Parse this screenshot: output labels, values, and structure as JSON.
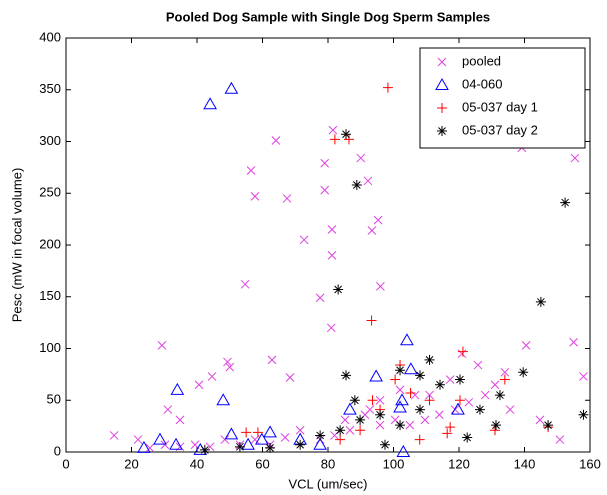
{
  "chart_data": {
    "type": "scatter",
    "title": "Pooled Dog Sample with Single Dog Sperm Samples",
    "x_label": "VCL (um/sec)",
    "y_label": "Pesc (mW in focal volume)",
    "xlim": [
      0,
      160
    ],
    "xticks": [
      0,
      20,
      40,
      60,
      80,
      100,
      120,
      140,
      160
    ],
    "ylim": [
      0,
      400
    ],
    "yticks": [
      0,
      50,
      100,
      150,
      200,
      250,
      300,
      350,
      400
    ],
    "grid": false,
    "legend_loc": "upper right",
    "series": [
      {
        "name": "pooled",
        "color": "#e040e0",
        "marker": "x",
        "x": [
          14.7,
          29.3,
          64.1,
          56.5,
          57.7,
          67.5,
          54.7,
          72.7,
          81.2,
          81.2,
          79,
          79,
          81.5,
          90,
          92.2,
          93.4,
          95.3,
          96,
          77.6,
          81,
          68.4,
          62.9,
          50,
          49.3,
          44.6,
          40.6,
          31.1,
          34.8,
          139.2,
          155.4,
          155,
          158,
          140.5,
          134,
          131,
          128,
          123,
          118.8,
          114,
          109.6,
          105,
          100.5,
          95.9,
          91.3,
          86.7,
          82,
          77.6,
          71.5,
          66.9,
          62.3,
          57.7,
          53.1,
          48.5,
          44,
          39.4,
          34.8,
          30.2,
          25.6,
          22,
          150.8,
          144.7,
          135.6,
          125.8,
          120.9,
          106.6,
          102,
          95.9,
          117.3,
          111,
          92.8,
          85.2
        ],
        "y": [
          16,
          103,
          301,
          272,
          247,
          245,
          162,
          205,
          190,
          215,
          279,
          253,
          311,
          284,
          262,
          214,
          224,
          160,
          149,
          120,
          72,
          89,
          82,
          87,
          73,
          65,
          41,
          31,
          294,
          284,
          106,
          73,
          103,
          77,
          65,
          55,
          48,
          41,
          36,
          31,
          26,
          31,
          26,
          36,
          21,
          16,
          12,
          21,
          14,
          7,
          12,
          7,
          12,
          5,
          7,
          5,
          7,
          4,
          12,
          12,
          31,
          41,
          84,
          95,
          55,
          60,
          50,
          70,
          55,
          41,
          31
        ]
      },
      {
        "name": "04-060",
        "color": "#0000ff",
        "marker": "triangle",
        "x": [
          23.8,
          28.7,
          33.6,
          34,
          48,
          50.5,
          44,
          50.5,
          55.6,
          59.8,
          62.3,
          71.5,
          77.6,
          86.7,
          94.7,
          102.6,
          104.1,
          105.3,
          102,
          119.7,
          103,
          41
        ],
        "y": [
          4,
          12,
          7,
          60,
          50,
          17,
          336,
          351,
          7,
          12,
          19,
          12,
          7,
          41,
          73,
          50,
          108,
          80,
          43,
          41,
          0,
          2
        ]
      },
      {
        "name": "05-037 day 1",
        "color": "#ff0000",
        "marker": "plus",
        "x": [
          55,
          58.6,
          82.1,
          86.4,
          98.3,
          93.3,
          121.2,
          105.2,
          117.3,
          116.4,
          134,
          131,
          147.2,
          102,
          100.5,
          95.9,
          89.8,
          83.7,
          108,
          111,
          120.3,
          93.6
        ],
        "y": [
          19,
          19,
          302,
          302,
          352,
          127,
          97,
          57,
          24,
          18,
          70,
          21,
          24,
          84,
          70,
          41,
          21,
          12,
          12,
          50,
          50,
          50
        ]
      },
      {
        "name": "05-037 day 2",
        "color": "#000000",
        "marker": "asterisk",
        "x": [
          85.5,
          88.8,
          83.1,
          152.4,
          145,
          139.6,
          158,
          147.2,
          132.5,
          126.4,
          120.3,
          114.2,
          108.1,
          102,
          95.9,
          89.8,
          83.7,
          77.6,
          71.5,
          62.3,
          53.1,
          42.4,
          85.5,
          102,
          111,
          131.3,
          122.5,
          97.4,
          88.2,
          108.1
        ],
        "y": [
          307,
          258,
          157,
          241,
          145,
          77,
          36,
          26,
          55,
          41,
          70,
          65,
          74,
          26,
          36,
          31,
          21,
          16,
          7,
          4,
          5,
          2,
          74,
          79,
          89,
          26,
          14,
          7,
          50,
          41
        ]
      }
    ]
  }
}
